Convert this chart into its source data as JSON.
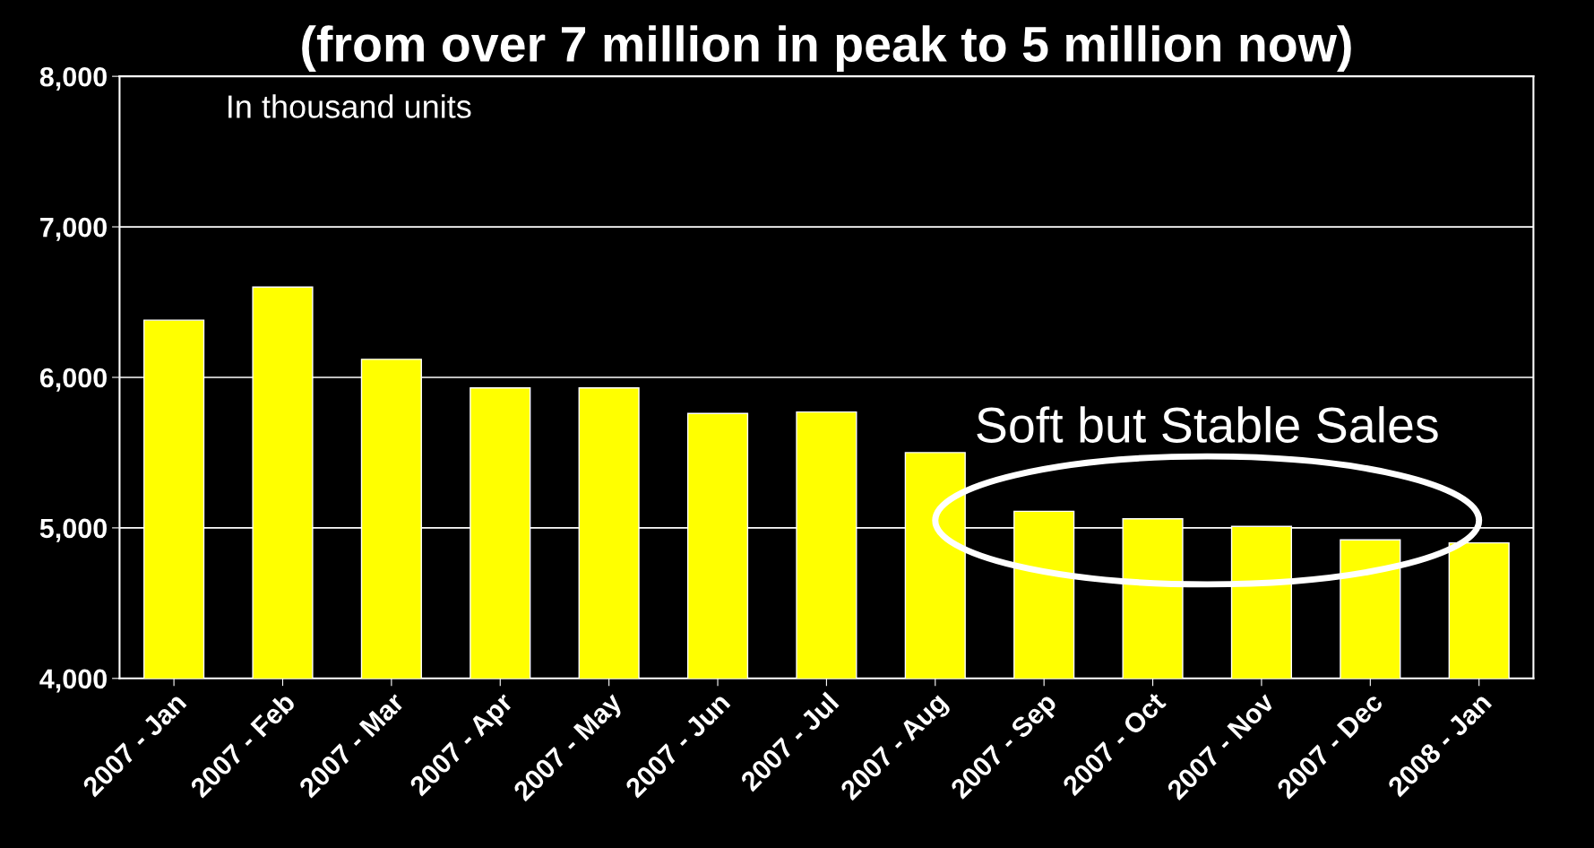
{
  "chart_data": {
    "type": "bar",
    "title": "(from over 7 million in peak to 5 million now)",
    "categories": [
      "2007 - Jan",
      "2007 - Feb",
      "2007 - Mar",
      "2007 - Apr",
      "2007 - May",
      "2007 - Jun",
      "2007 - Jul",
      "2007 - Aug",
      "2007 - Sep",
      "2007 - Oct",
      "2007 - Nov",
      "2007 - Dec",
      "2008 - Jan"
    ],
    "values": [
      6380,
      6600,
      6120,
      5930,
      5930,
      5760,
      5770,
      5500,
      5110,
      5060,
      5010,
      4920,
      4900
    ],
    "color": "#ffff00",
    "ylim": [
      4000,
      8000
    ],
    "yticks": [
      {
        "value": 4000,
        "label": "4,000"
      },
      {
        "value": 5000,
        "label": "5,000"
      },
      {
        "value": 6000,
        "label": "6,000"
      },
      {
        "value": 7000,
        "label": "7,000"
      },
      {
        "value": 8000,
        "label": "8,000"
      }
    ],
    "grid": "y",
    "annotations": [
      "In thousand units",
      "Soft but Stable Sales"
    ]
  }
}
